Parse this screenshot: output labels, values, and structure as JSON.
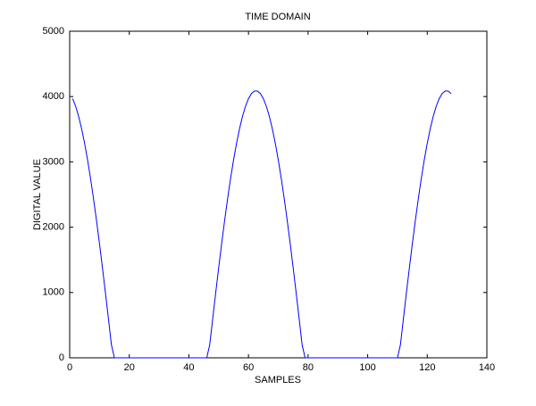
{
  "chart_data": {
    "type": "line",
    "title": "TIME DOMAIN",
    "x_label": "SAMPLES",
    "y_label": "DIGITAL VALUE",
    "x": [
      1,
      2,
      3,
      4,
      5,
      6,
      7,
      8,
      9,
      10,
      11,
      12,
      13,
      14,
      15,
      16,
      17,
      18,
      19,
      20,
      21,
      22,
      23,
      24,
      25,
      26,
      27,
      28,
      29,
      30,
      31,
      32,
      33,
      34,
      35,
      36,
      37,
      38,
      39,
      40,
      41,
      42,
      43,
      44,
      45,
      46,
      47,
      48,
      49,
      50,
      51,
      52,
      53,
      54,
      55,
      56,
      57,
      58,
      59,
      60,
      61,
      62,
      63,
      64,
      65,
      66,
      67,
      68,
      69,
      70,
      71,
      72,
      73,
      74,
      75,
      76,
      77,
      78,
      79,
      80,
      81,
      82,
      83,
      84,
      85,
      86,
      87,
      88,
      89,
      90,
      91,
      92,
      93,
      94,
      95,
      96,
      97,
      98,
      99,
      100,
      101,
      102,
      103,
      104,
      105,
      106,
      107,
      108,
      109,
      110,
      111,
      112,
      113,
      114,
      115,
      116,
      117,
      118,
      119,
      120,
      121,
      122,
      123,
      124,
      125,
      126,
      127,
      128
    ],
    "values": [
      3967,
      3851,
      3697,
      3508,
      3285,
      3031,
      2747,
      2436,
      2103,
      1749,
      1378,
      994,
      600,
      201,
      0,
      0,
      0,
      0,
      0,
      0,
      0,
      0,
      0,
      0,
      0,
      0,
      0,
      0,
      0,
      0,
      0,
      0,
      0,
      0,
      0,
      0,
      0,
      0,
      0,
      0,
      0,
      0,
      0,
      0,
      0,
      0,
      201,
      600,
      994,
      1378,
      1749,
      2103,
      2436,
      2747,
      3031,
      3285,
      3508,
      3697,
      3851,
      3967,
      4046,
      4085,
      4085,
      4046,
      3967,
      3851,
      3697,
      3508,
      3285,
      3031,
      2747,
      2436,
      2103,
      1749,
      1378,
      994,
      600,
      201,
      0,
      0,
      0,
      0,
      0,
      0,
      0,
      0,
      0,
      0,
      0,
      0,
      0,
      0,
      0,
      0,
      0,
      0,
      0,
      0,
      0,
      0,
      0,
      0,
      0,
      0,
      0,
      0,
      0,
      0,
      0,
      0,
      201,
      600,
      994,
      1378,
      1749,
      2103,
      2436,
      2747,
      3031,
      3285,
      3508,
      3697,
      3851,
      3967,
      4046,
      4085,
      4085,
      4046
    ],
    "color": "#0000ff",
    "xlim": [
      0,
      140
    ],
    "xticks": [
      0,
      20,
      40,
      60,
      80,
      100,
      120,
      140
    ],
    "ylim": [
      0,
      5000
    ],
    "yticks": [
      0,
      1000,
      2000,
      3000,
      4000,
      5000
    ]
  }
}
